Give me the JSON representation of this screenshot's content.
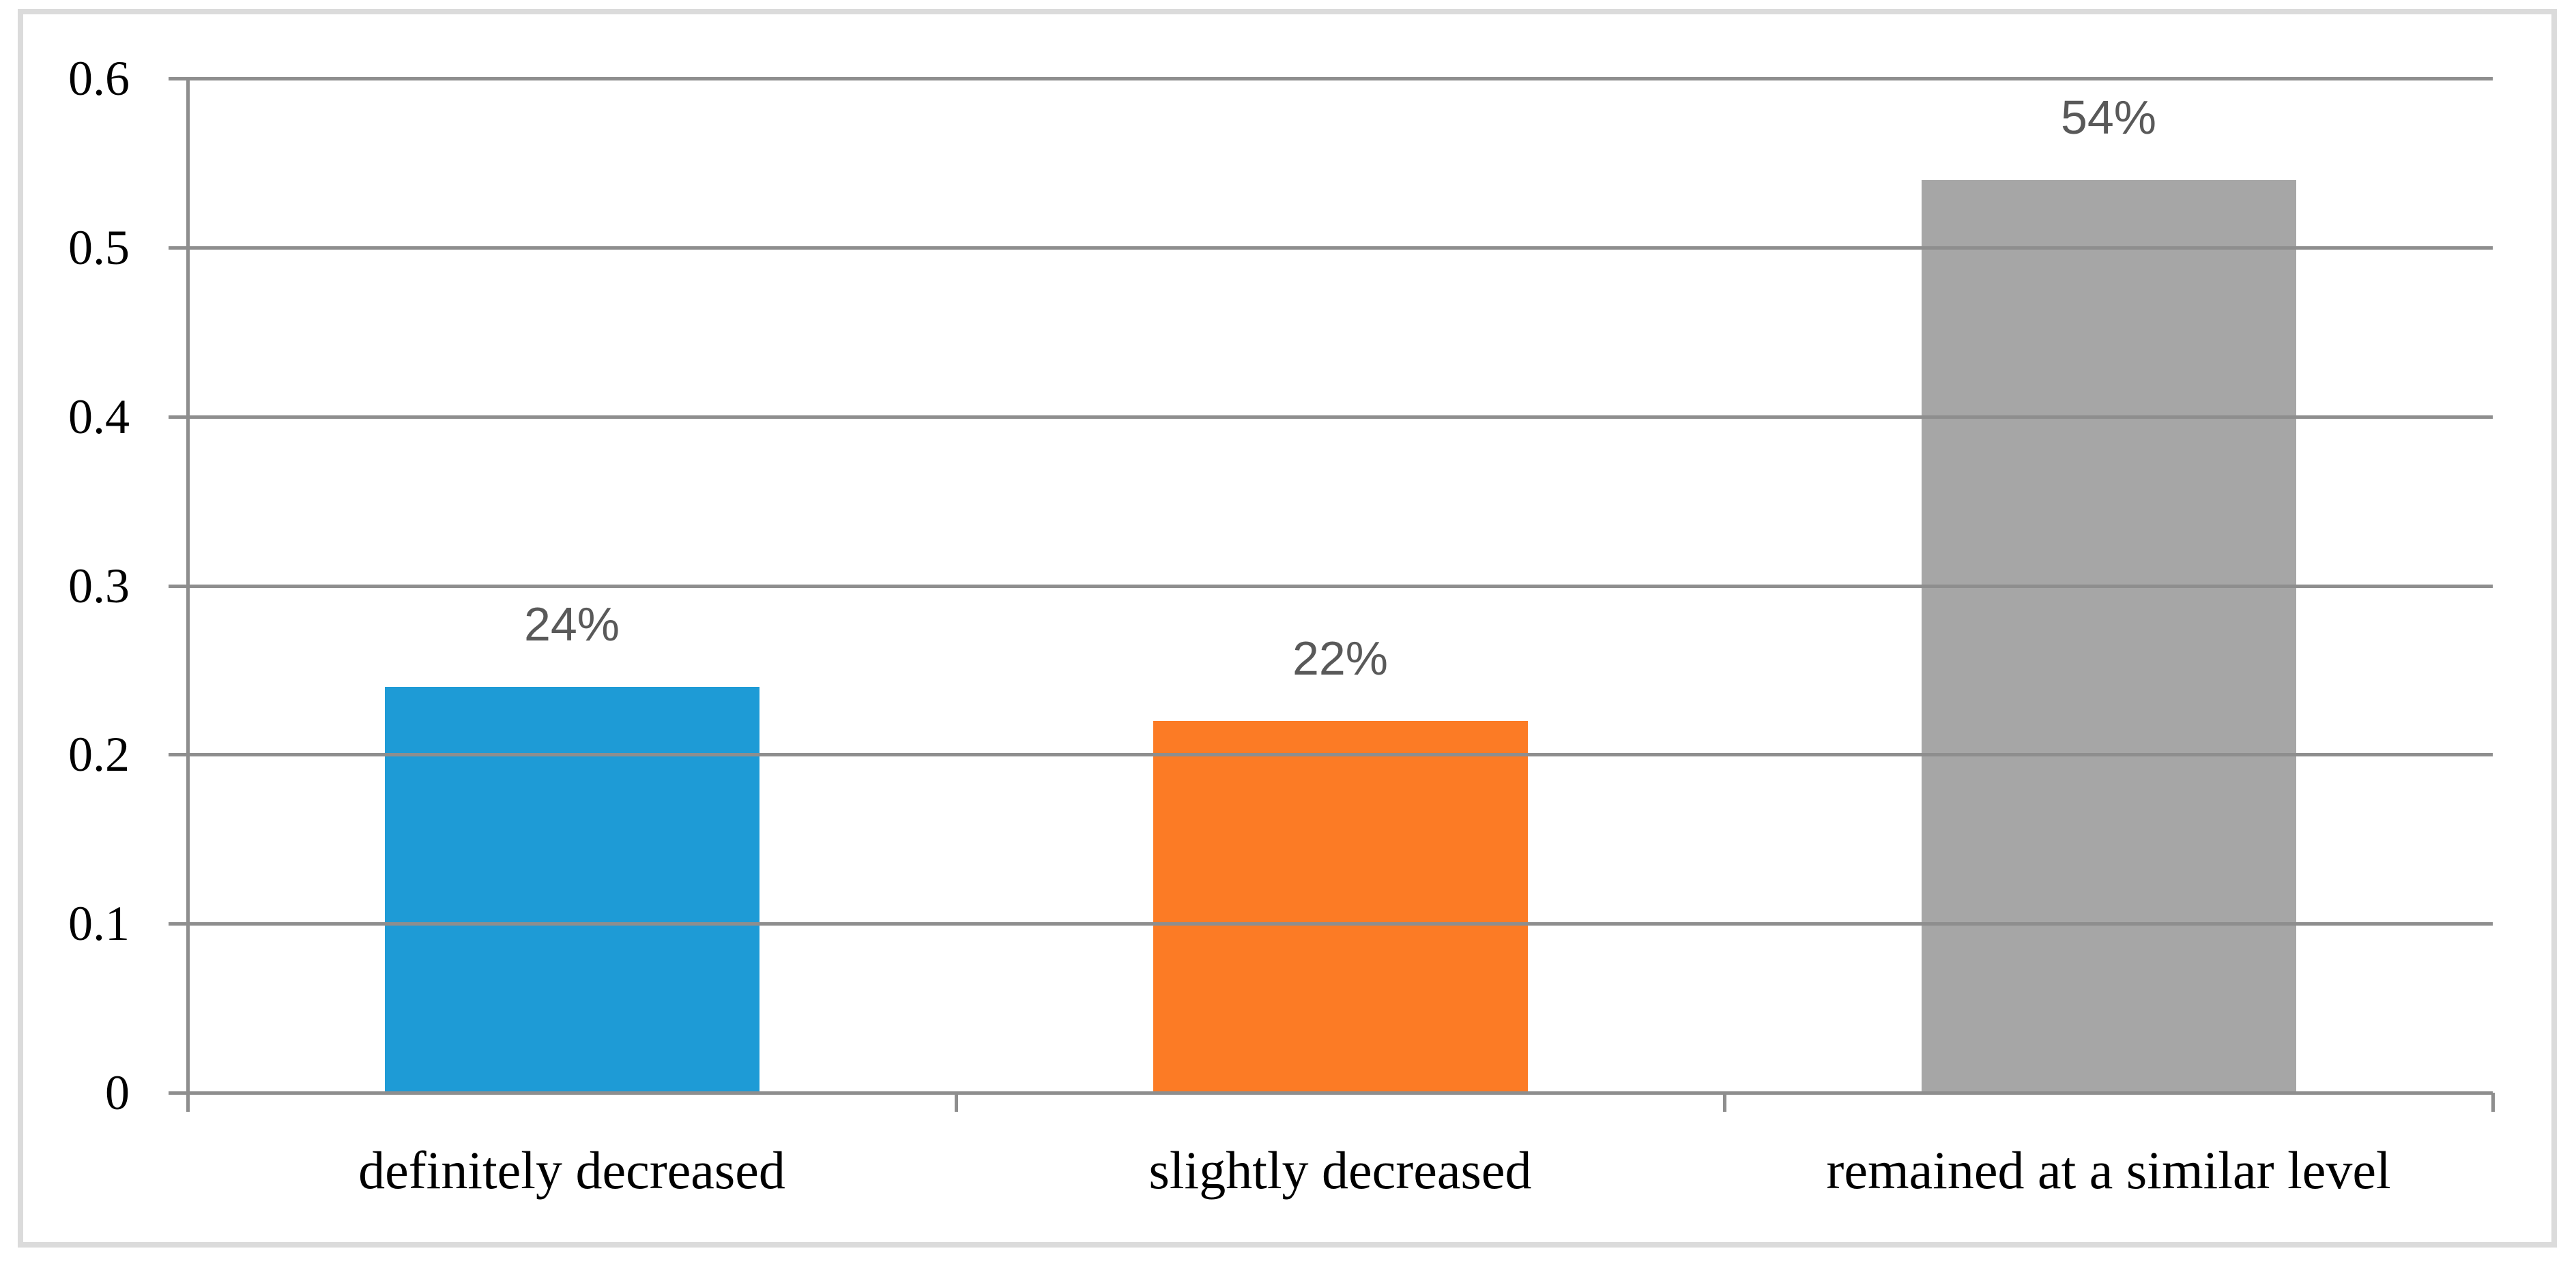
{
  "chart_data": {
    "type": "bar",
    "title": "",
    "xlabel": "",
    "ylabel": "",
    "categories": [
      "definitely decreased",
      "slightly decreased",
      "remained at a similar level"
    ],
    "values": [
      0.24,
      0.22,
      0.54
    ],
    "data_labels": [
      "24%",
      "22%",
      "54%"
    ],
    "yticks": [
      "0.6",
      "0.5",
      "0.4",
      "0.3",
      "0.2",
      "0.1",
      "0"
    ],
    "ylim": [
      0,
      0.6
    ],
    "grid": true,
    "legend": "none",
    "bar_colors": [
      "#1e9bd6",
      "#fc7b25",
      "#a6a6a6"
    ],
    "data_label_color": "#595959",
    "axis_text_color": "#000000",
    "gridline_color": "#8e8e8e",
    "frame_color": "#dbdbdb"
  }
}
